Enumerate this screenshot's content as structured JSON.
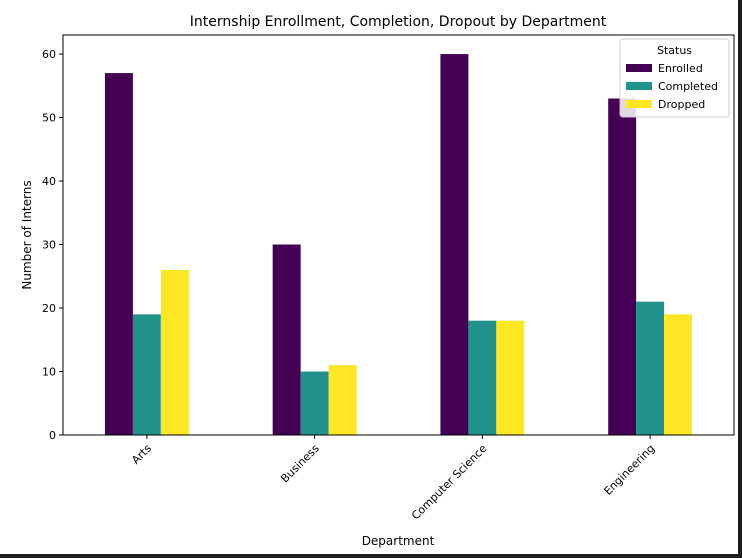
{
  "chart_data": {
    "type": "bar",
    "title": "Internship Enrollment, Completion, Dropout by Department",
    "xlabel": "Department",
    "ylabel": "Number of Interns",
    "categories": [
      "Arts",
      "Business",
      "Computer Science",
      "Engineering"
    ],
    "series": [
      {
        "name": "Enrolled",
        "color": "#440154",
        "values": [
          57,
          30,
          60,
          53
        ]
      },
      {
        "name": "Completed",
        "color": "#21918c",
        "values": [
          19,
          10,
          18,
          21
        ]
      },
      {
        "name": "Dropped",
        "color": "#fde725",
        "values": [
          26,
          11,
          18,
          19
        ]
      }
    ],
    "ylim": [
      0,
      63
    ],
    "yticks": [
      0,
      10,
      20,
      30,
      40,
      50,
      60
    ],
    "grid": false,
    "legend": {
      "title": "Status",
      "placement": "top-right"
    }
  }
}
